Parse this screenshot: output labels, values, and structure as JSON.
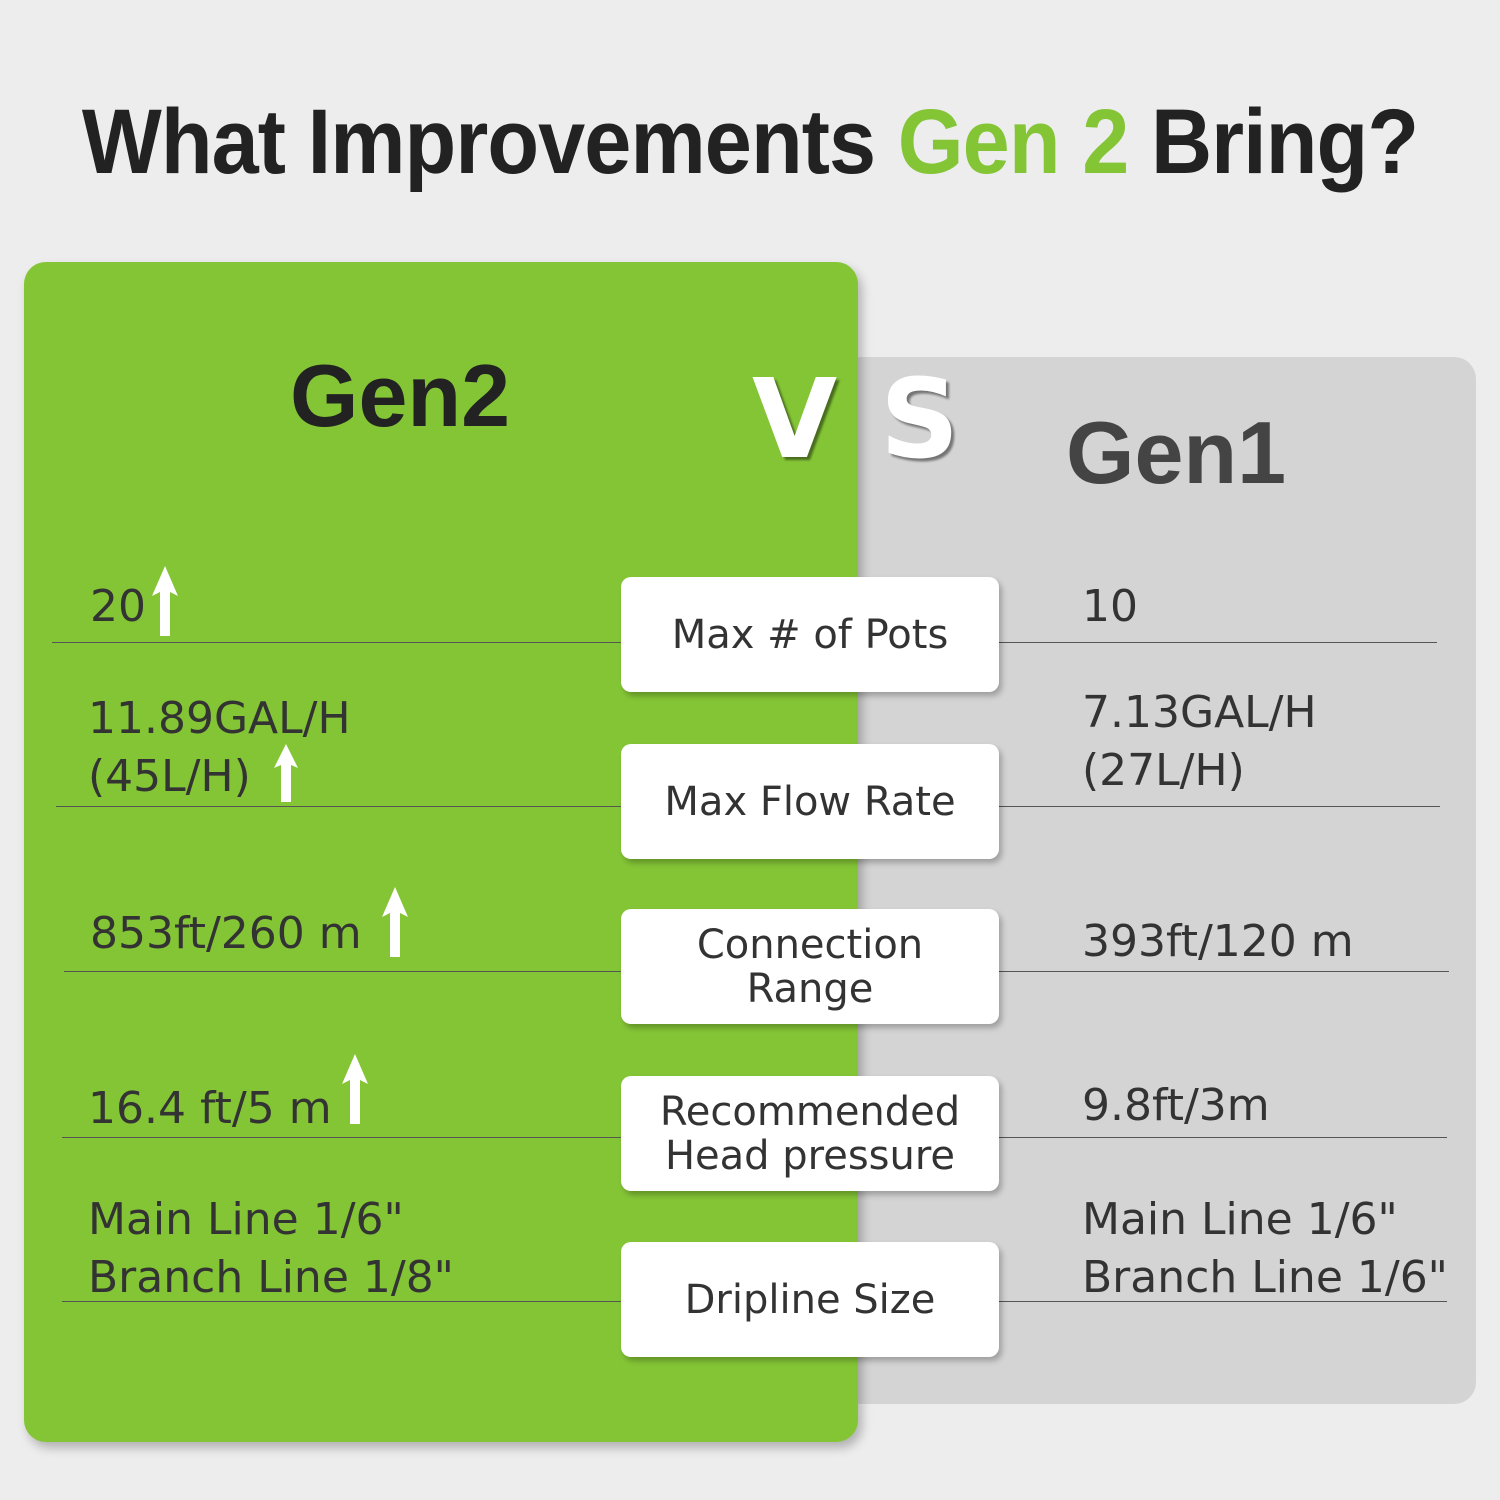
{
  "title": {
    "pre": "What Improvements ",
    "highlight": "Gen 2",
    "post": " Bring?"
  },
  "colors": {
    "accent": "#84c536",
    "gen1_panel": "#d4d4d4",
    "background": "#ededed"
  },
  "gen2_label": "Gen2",
  "gen1_label": "Gen1",
  "vs": {
    "v": "V",
    "s": "S"
  },
  "rows": [
    {
      "label": "Max # of Pots",
      "gen2": "20",
      "gen1": "10",
      "improved_icon": "arrow-up-icon"
    },
    {
      "label": "Max Flow Rate",
      "gen2": "11.89GAL/H\n(45L/H)",
      "gen1": "7.13GAL/H\n(27L/H)",
      "improved_icon": "arrow-up-icon"
    },
    {
      "label": "Connection\nRange",
      "gen2": "853ft/260 m",
      "gen1": "393ft/120 m",
      "improved_icon": "arrow-up-icon"
    },
    {
      "label": "Recommended\nHead pressure",
      "gen2": "16.4 ft/5 m",
      "gen1": "9.8ft/3m",
      "improved_icon": "arrow-up-icon"
    },
    {
      "label": "Dripline Size",
      "gen2": "Main Line 1/6\"\nBranch Line 1/8\"",
      "gen1": "Main Line 1/6\"\nBranch Line 1/6\""
    }
  ]
}
